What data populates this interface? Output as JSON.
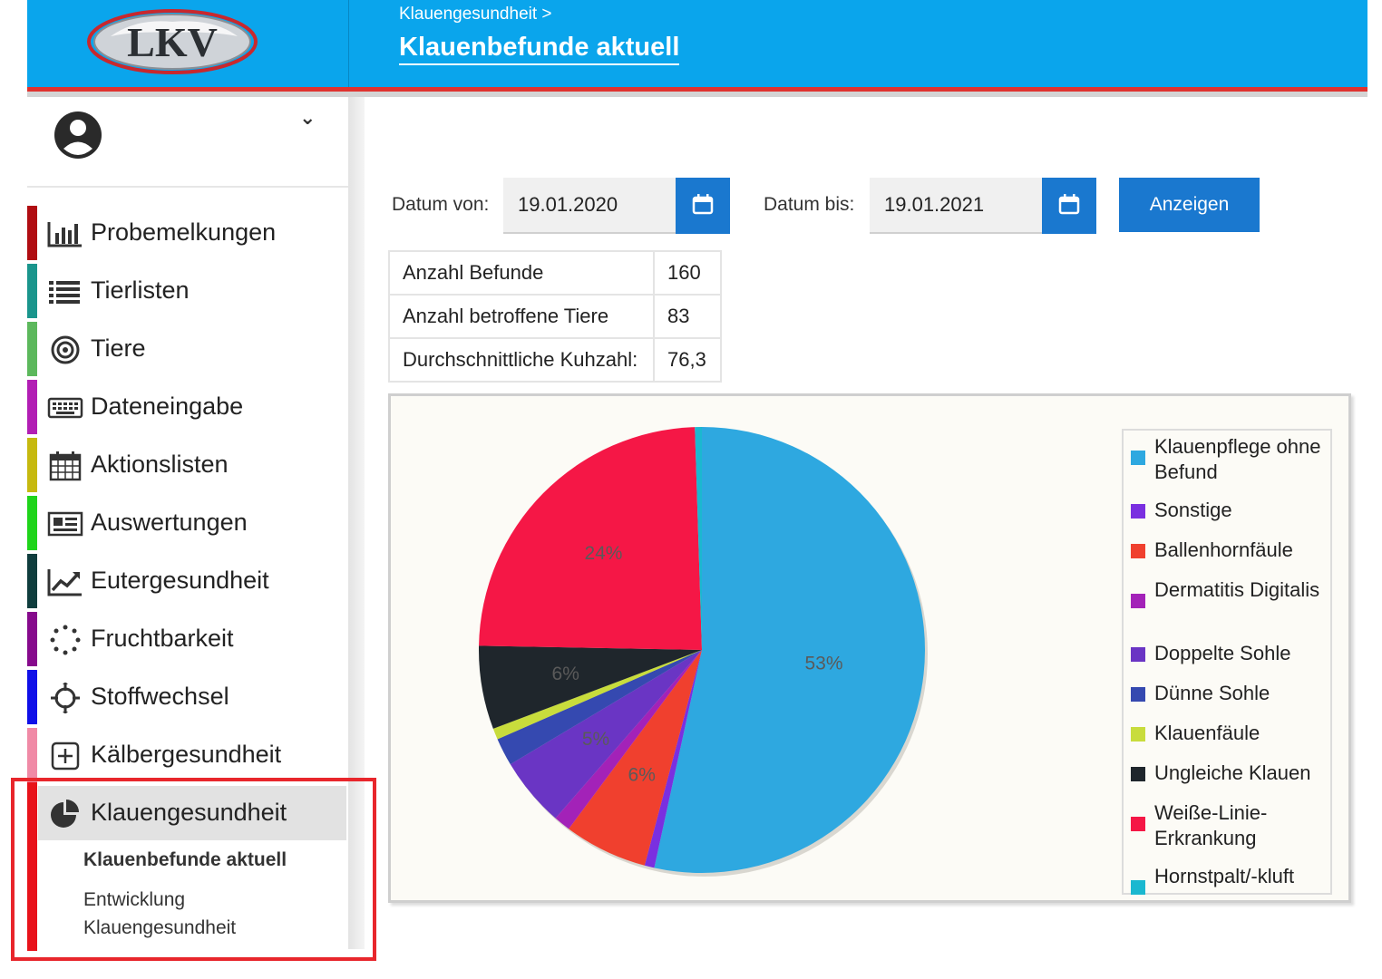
{
  "header": {
    "logo_text": "LKV",
    "breadcrumb": "Klauengesundheit >",
    "title": "Klauenbefunde aktuell"
  },
  "sidebar": {
    "items": [
      {
        "label": "Probemelkungen",
        "icon": "bar-chart-icon",
        "color": "#b00d12"
      },
      {
        "label": "Tierlisten",
        "icon": "list-icon",
        "color": "#1a958c"
      },
      {
        "label": "Tiere",
        "icon": "target-icon",
        "color": "#5cb85c"
      },
      {
        "label": "Dateneingabe",
        "icon": "keyboard-icon",
        "color": "#b21eb4"
      },
      {
        "label": "Aktionslisten",
        "icon": "calendar-icon",
        "color": "#c6b90f"
      },
      {
        "label": "Auswertungen",
        "icon": "newspaper-icon",
        "color": "#1fd41b"
      },
      {
        "label": "Eutergesundheit",
        "icon": "trend-chart-icon",
        "color": "#0f3d3d"
      },
      {
        "label": "Fruchtbarkeit",
        "icon": "dotted-circle-icon",
        "color": "#860a8c"
      },
      {
        "label": "Stoffwechsel",
        "icon": "crosshair-icon",
        "color": "#1010e8"
      },
      {
        "label": "Kälbergesundheit",
        "icon": "plus-box-icon",
        "color": "#f08aa6"
      },
      {
        "label": "Klauengesundheit",
        "icon": "pie-chart-icon",
        "color": "#e8121a"
      }
    ],
    "sub_items": [
      "Klauenbefunde aktuell",
      "Entwicklung",
      "Klauengesundheit"
    ]
  },
  "filters": {
    "from_label": "Datum von:",
    "from_value": "19.01.2020",
    "to_label": "Datum bis:",
    "to_value": "19.01.2021",
    "show_button": "Anzeigen"
  },
  "stats": [
    {
      "label": "Anzahl Befunde",
      "value": "160"
    },
    {
      "label": "Anzahl betroffene Tiere",
      "value": "83"
    },
    {
      "label": "Durchschnittliche Kuhzahl:",
      "value": "76,3"
    }
  ],
  "chart_data": {
    "type": "pie",
    "slices": [
      {
        "name": "Klauenpflege ohne Befund",
        "value": 53,
        "color": "#2ea8e0",
        "label": "53%"
      },
      {
        "name": "Sonstige",
        "value": 0.7,
        "color": "#7a2fe0",
        "label": ""
      },
      {
        "name": "Ballenhornfäule",
        "value": 6,
        "color": "#f0402e",
        "label": "6%"
      },
      {
        "name": "Dermatitis Digitalis",
        "value": 1.2,
        "color": "#a322b8",
        "label": ""
      },
      {
        "name": "Doppelte Sohle",
        "value": 5,
        "color": "#6a35c4",
        "label": "5%"
      },
      {
        "name": "Dünne Sohle",
        "value": 2,
        "color": "#3549b0",
        "label": ""
      },
      {
        "name": "Klauenfäule",
        "value": 0.8,
        "color": "#c8dc3c",
        "label": ""
      },
      {
        "name": "Ungleiche Klauen",
        "value": 6,
        "color": "#1f262c",
        "label": "6%"
      },
      {
        "name": "Weiße-Linie-Erkrankung",
        "value": 24,
        "color": "#f51746",
        "label": "24%"
      },
      {
        "name": "Hornstpalt/-kluft",
        "value": 0.5,
        "color": "#1bb8d0",
        "label": ""
      }
    ],
    "legend_position": "right",
    "legend": [
      {
        "text": "Klauenpflege ohne Befund",
        "color": "#2ea8e0"
      },
      {
        "text": "Sonstige",
        "color": "#7a2fe0"
      },
      {
        "text": "Ballenhornfäule",
        "color": "#f0402e"
      },
      {
        "text": "Dermatitis Digitalis",
        "color": "#a322b8"
      },
      {
        "text": "Doppelte Sohle",
        "color": "#6a35c4"
      },
      {
        "text": "Dünne Sohle",
        "color": "#3549b0"
      },
      {
        "text": "Klauenfäule",
        "color": "#c8dc3c"
      },
      {
        "text": "Ungleiche Klauen",
        "color": "#1f262c"
      },
      {
        "text": "Weiße-Linie-Erkrankung",
        "color": "#f51746"
      },
      {
        "text": "Hornstpalt/-kluft",
        "color": "#1bb8d0"
      }
    ]
  }
}
